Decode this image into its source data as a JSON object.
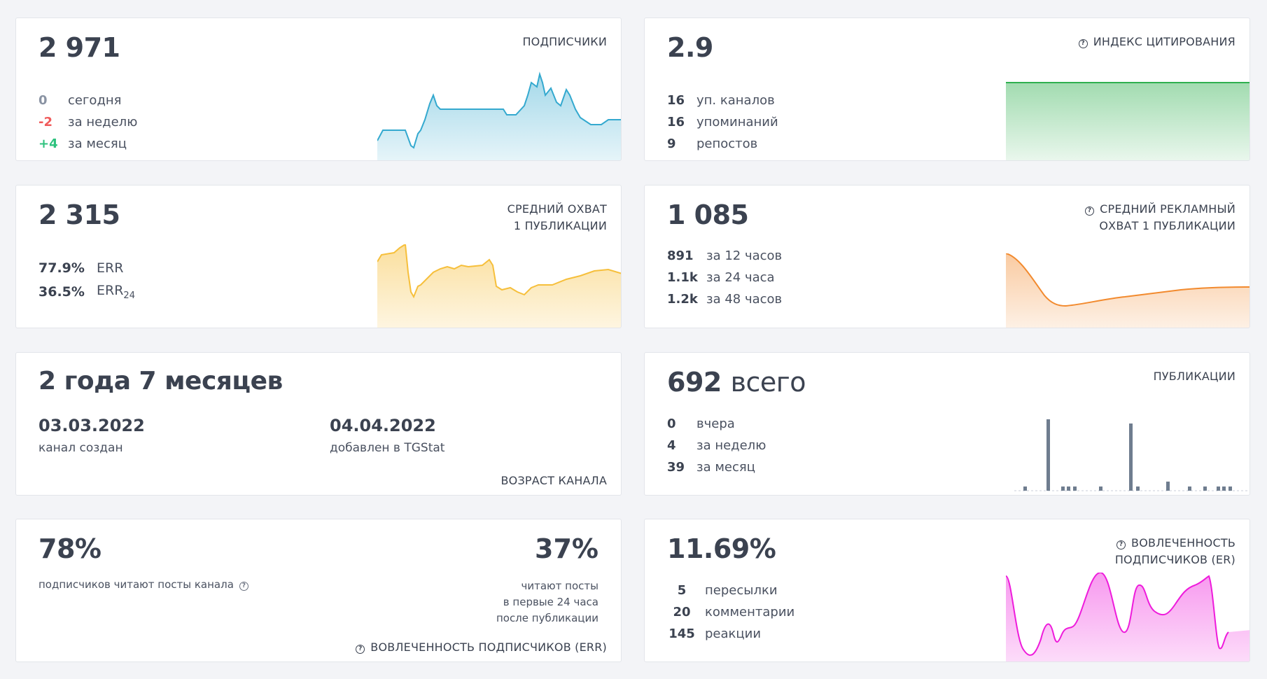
{
  "colors": {
    "subscribers": "#34a9cf",
    "citation": "#2fb04f",
    "reach": "#f6bf3b",
    "ad_reach": "#f28a2e",
    "publications": "#6f7d8f",
    "er": "#ee1bdb"
  },
  "subscribers": {
    "title": "ПОДПИСЧИКИ",
    "value": "2 971",
    "rows": [
      {
        "val": "0",
        "label": "сегодня"
      },
      {
        "val": "-2",
        "label": "за неделю"
      },
      {
        "val": "+4",
        "label": "за месяц"
      }
    ]
  },
  "citation": {
    "title": "ИНДЕКС ЦИТИРОВАНИЯ",
    "value": "2.9",
    "rows": [
      {
        "val": "16",
        "label": "уп. каналов"
      },
      {
        "val": "16",
        "label": "упоминаний"
      },
      {
        "val": "9",
        "label": "репостов"
      }
    ]
  },
  "reach": {
    "title_line1": "СРЕДНИЙ ОХВАТ",
    "title_line2": "1 ПУБЛИКАЦИИ",
    "value": "2 315",
    "rows": [
      {
        "val": "77.9%",
        "label": "ERR",
        "sub": ""
      },
      {
        "val": "36.5%",
        "label": "ERR",
        "sub": "24"
      }
    ]
  },
  "ad_reach": {
    "title_line1": "СРЕДНИЙ РЕКЛАМНЫЙ",
    "title_line2": "ОХВАТ 1 ПУБЛИКАЦИИ",
    "value": "1 085",
    "rows": [
      {
        "val": "891",
        "label": "за 12 часов"
      },
      {
        "val": "1.1k",
        "label": "за 24 часа"
      },
      {
        "val": "1.2k",
        "label": "за 48 часов"
      }
    ]
  },
  "age": {
    "value": "2 года 7 месяцев",
    "created_date": "03.03.2022",
    "created_label": "канал создан",
    "added_date": "04.04.2022",
    "added_label": "добавлен в TGStat",
    "title": "ВОЗРАСТ КАНАЛА"
  },
  "publications": {
    "title": "ПУБЛИКАЦИИ",
    "value": "692",
    "value_suffix": "всего",
    "rows": [
      {
        "val": "0",
        "label": "вчера"
      },
      {
        "val": "4",
        "label": "за неделю"
      },
      {
        "val": "39",
        "label": "за месяц"
      }
    ]
  },
  "read": {
    "left_value": "78%",
    "left_label": "подписчиков читают посты канала",
    "right_value": "37%",
    "right_label_1": "читают посты",
    "right_label_2": "в первые 24 часа",
    "right_label_3": "после публикации",
    "title": "ВОВЛЕЧЕННОСТЬ ПОДПИСЧИКОВ (ERR)"
  },
  "er": {
    "title_line1": "ВОВЛЕЧЕННОСТЬ",
    "title_line2": "ПОДПИСЧИКОВ (ER)",
    "value": "11.69%",
    "rows": [
      {
        "val": "5",
        "label": "пересылки"
      },
      {
        "val": "20",
        "label": "комментарии"
      },
      {
        "val": "145",
        "label": "реакции"
      }
    ]
  }
}
